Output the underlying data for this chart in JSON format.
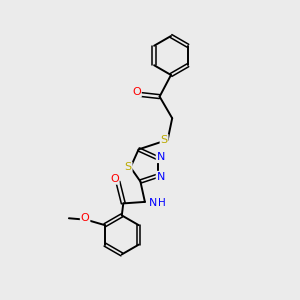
{
  "background_color": "#ebebeb",
  "bond_color": "#000000",
  "atom_colors": {
    "O": "#ff0000",
    "N": "#0000ff",
    "S": "#bbaa00",
    "C": "#000000",
    "H": "#0000ff"
  },
  "figsize": [
    3.0,
    3.0
  ],
  "dpi": 100
}
